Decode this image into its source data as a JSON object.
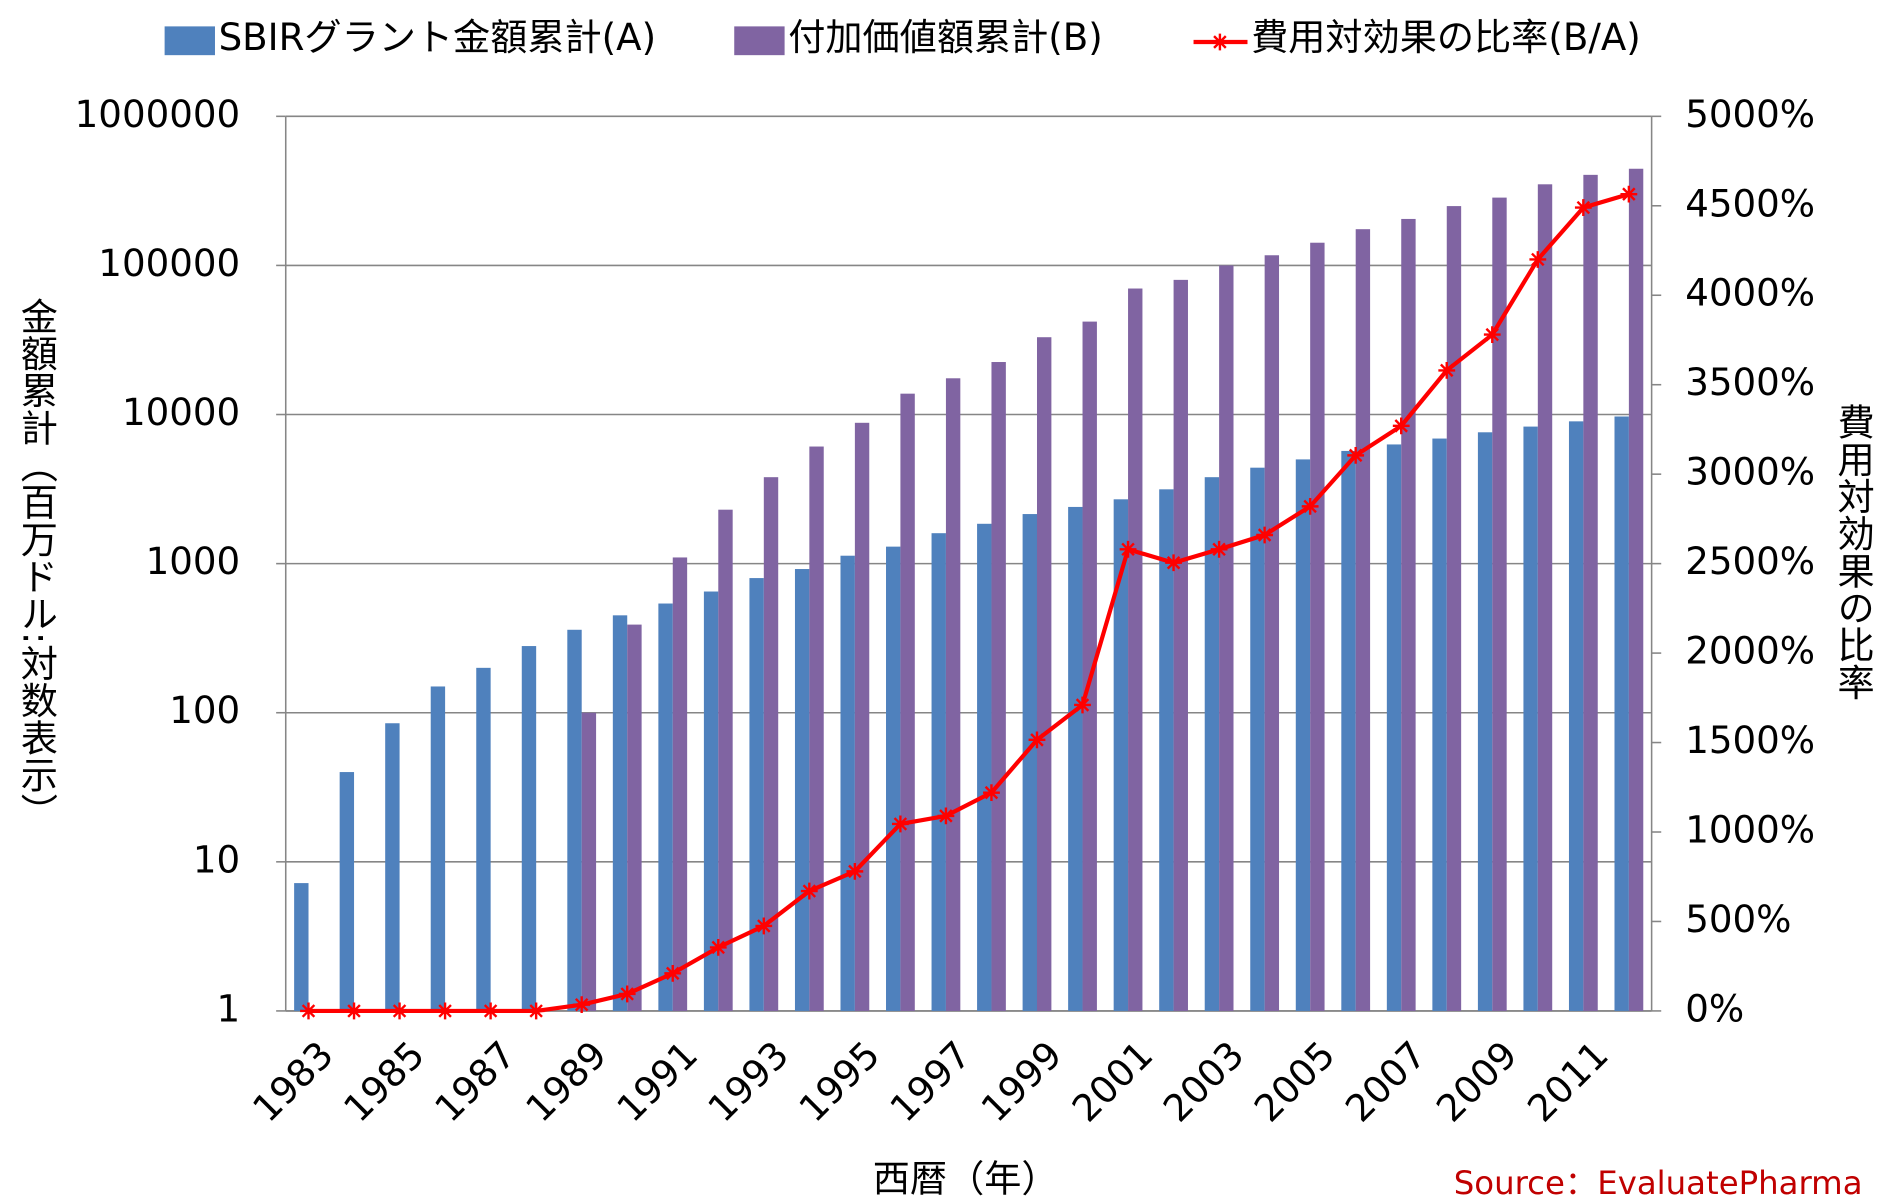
{
  "chart_data": {
    "type": "bar-line",
    "categories": [
      "1983",
      null,
      "1985",
      null,
      "1987",
      null,
      "1989",
      null,
      "1991",
      null,
      "1993",
      null,
      "1995",
      null,
      "1997",
      null,
      "1999",
      null,
      "2001",
      null,
      "2003",
      null,
      "2005",
      null,
      "2007",
      null,
      "2009",
      null,
      "2011",
      null
    ],
    "series": [
      {
        "name": "SBIRグラント金額累計(A)",
        "color": "#4f81bd",
        "type": "bar",
        "values": [
          7.2,
          40,
          85,
          150,
          200,
          280,
          360,
          450,
          540,
          650,
          800,
          920,
          1130,
          1300,
          1600,
          1850,
          2150,
          2400,
          2700,
          3150,
          3800,
          4400,
          5000,
          5700,
          6300,
          6900,
          7600,
          8300,
          9000,
          9700
        ]
      },
      {
        "name": "付加価値額累計(B)",
        "color": "#8064a2",
        "type": "bar",
        "values": [
          null,
          null,
          null,
          null,
          null,
          null,
          100,
          390,
          1100,
          2300,
          3800,
          6100,
          8800,
          13800,
          17500,
          22500,
          33000,
          42000,
          70000,
          80000,
          100000,
          117000,
          142000,
          175000,
          205000,
          250000,
          285000,
          350000,
          405000,
          445000
        ]
      },
      {
        "name": "費用対効果の比率(B/A)",
        "color": "#ff0000",
        "type": "line",
        "axis": "y2",
        "values": [
          0,
          0,
          0,
          0,
          0,
          0,
          35,
          95,
          210,
          355,
          475,
          670,
          780,
          1045,
          1090,
          1220,
          1515,
          1710,
          2580,
          2505,
          2580,
          2660,
          2820,
          3105,
          3270,
          3580,
          3780,
          4200,
          4490,
          4565
        ]
      }
    ],
    "y_label": "金額累計（百万ドル:対数表示）",
    "y2_label": "費用対効果の比率",
    "x_label": "西暦（年）",
    "source": "Source：EvaluatePharma",
    "yscale": "log",
    "ylim": [
      1,
      1000000
    ],
    "yticks": [
      1,
      10,
      100,
      1000,
      10000,
      100000,
      1000000
    ],
    "y2lim": [
      0,
      5000
    ],
    "y2ticks": [
      {
        "value": 0,
        "label": "0%"
      },
      {
        "value": 500,
        "label": "500%"
      },
      {
        "value": 1000,
        "label": "1000%"
      },
      {
        "value": 1500,
        "label": "1500%"
      },
      {
        "value": 2000,
        "label": "2000%"
      },
      {
        "value": 2500,
        "label": "2500%"
      },
      {
        "value": 3000,
        "label": "3000%"
      },
      {
        "value": 3500,
        "label": "3500%"
      },
      {
        "value": 4000,
        "label": "4000%"
      },
      {
        "value": 4500,
        "label": "4500%"
      },
      {
        "value": 5000,
        "label": "5000%"
      }
    ],
    "grid": true,
    "legend": "top"
  }
}
